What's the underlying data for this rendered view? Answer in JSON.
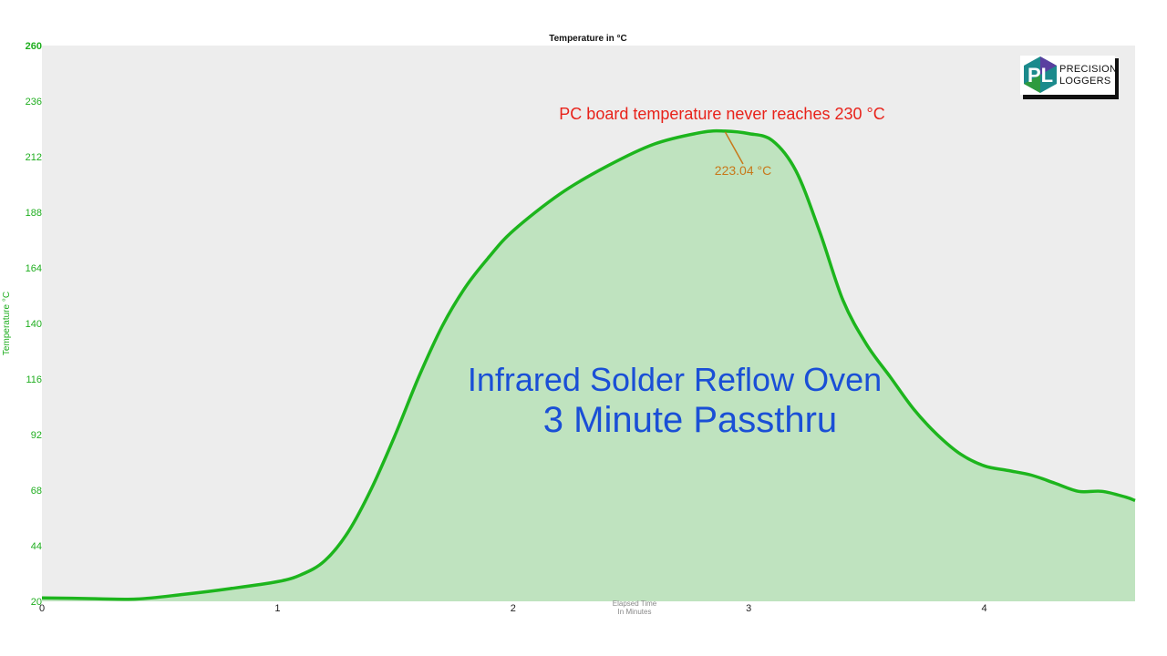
{
  "chart_data": {
    "type": "area",
    "title": "Temperature in °C",
    "ylabel": "Temperature °C",
    "xlabel_line1": "Elapsed Time",
    "xlabel_line2": "In Minutes",
    "ylim": [
      20,
      260
    ],
    "xlim": [
      0,
      4.64
    ],
    "yticks": [
      "260",
      "236",
      "212",
      "188",
      "164",
      "140",
      "116",
      "92",
      "68",
      "44",
      "20"
    ],
    "xticks": [
      "0",
      "1",
      "2",
      "3",
      "4"
    ],
    "grid": false,
    "series": [
      {
        "color": "#1db51d",
        "fill": "#bfe3bf",
        "x": [
          0,
          0.2,
          0.4,
          0.6,
          0.8,
          1.0,
          1.1,
          1.2,
          1.3,
          1.4,
          1.5,
          1.6,
          1.7,
          1.8,
          1.9,
          2.0,
          2.2,
          2.4,
          2.6,
          2.8,
          2.9,
          3.0,
          3.1,
          3.2,
          3.3,
          3.4,
          3.5,
          3.6,
          3.7,
          3.8,
          3.9,
          4.0,
          4.1,
          4.2,
          4.3,
          4.4,
          4.5,
          4.6,
          4.64
        ],
        "values": [
          21.5,
          21.2,
          21.0,
          23.0,
          25.5,
          28.5,
          31.5,
          37.5,
          50.0,
          69.0,
          92.0,
          117.0,
          139.0,
          156.0,
          169.0,
          180.0,
          196.0,
          208.0,
          217.5,
          222.5,
          223.04,
          222.0,
          219.0,
          206.0,
          180.0,
          150.0,
          131.0,
          117.0,
          103.0,
          92.0,
          83.5,
          78.5,
          76.5,
          74.5,
          71.0,
          67.5,
          67.5,
          65.0,
          63.5
        ]
      }
    ],
    "annotations": {
      "note": "PC board temperature never reaches 230 °C",
      "peak_label": "223.04 °C",
      "peak_x": 2.9,
      "peak_y": 223.04,
      "overlay_line1": "Infrared Solder Reflow Oven",
      "overlay_line2": "3 Minute Passthru"
    }
  },
  "logo": {
    "initials": "PL",
    "line1": "PRECISION",
    "line2": "LOGGERS"
  },
  "colors": {
    "plot_background": "#ededed",
    "line": "#1db51d",
    "fill": "#bfe3bf",
    "note": "#e8221a",
    "peak": "#c8781a",
    "overlay": "#1a4fd6"
  }
}
